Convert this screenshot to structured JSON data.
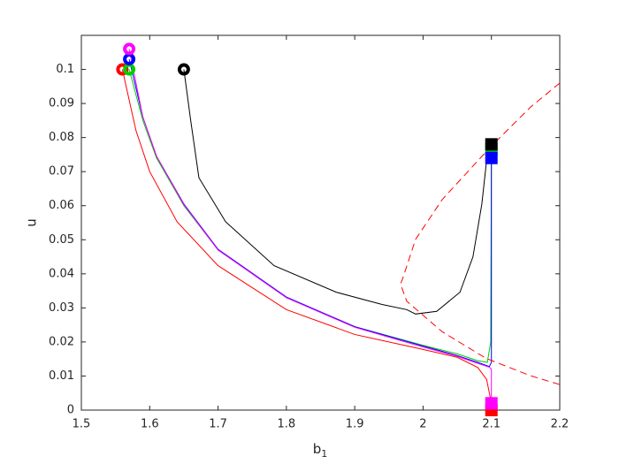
{
  "chart_data": {
    "type": "line",
    "x_label": [
      "b",
      "1"
    ],
    "y_label": "u",
    "xlim": [
      1.5,
      2.2
    ],
    "ylim": [
      0,
      0.11
    ],
    "xticks": [
      1.5,
      1.6,
      1.7,
      1.8,
      1.9,
      2,
      2.1,
      2.2
    ],
    "yticks": [
      0,
      0.01,
      0.02,
      0.03,
      0.04,
      0.05,
      0.06,
      0.07,
      0.08,
      0.09,
      0.1
    ],
    "series": [
      {
        "color": "#ff0000",
        "dash": false,
        "x": [
          1.56,
          1.58,
          1.6,
          1.64,
          1.7,
          1.8,
          1.9,
          2.0,
          2.05,
          2.08,
          2.093,
          2.098,
          2.1
        ],
        "values": [
          0.1,
          0.082,
          0.07,
          0.0553,
          0.0424,
          0.0295,
          0.0222,
          0.0178,
          0.0155,
          0.0125,
          0.009,
          0.004,
          0.0
        ],
        "start": [
          1.56,
          0.1
        ],
        "end": [
          2.1,
          0.0
        ]
      },
      {
        "color": "#00cc00",
        "dash": false,
        "x": [
          1.57,
          1.59,
          1.61,
          1.65,
          1.7,
          1.8,
          1.9,
          2.0,
          2.05,
          2.08,
          2.094,
          2.099,
          2.1
        ],
        "values": [
          0.1,
          0.085,
          0.074,
          0.06,
          0.047,
          0.033,
          0.0245,
          0.019,
          0.0165,
          0.0145,
          0.014,
          0.02,
          0.076
        ],
        "start": [
          1.57,
          0.1
        ],
        "end": [
          2.1,
          0.0765
        ]
      },
      {
        "color": "#0000ff",
        "dash": false,
        "x": [
          1.57,
          1.59,
          1.61,
          1.65,
          1.7,
          1.8,
          1.9,
          2.0,
          2.05,
          2.08,
          2.097,
          2.1,
          2.1
        ],
        "values": [
          0.103,
          0.086,
          0.0745,
          0.0605,
          0.0472,
          0.0332,
          0.0245,
          0.0188,
          0.016,
          0.014,
          0.0128,
          0.014,
          0.074
        ],
        "start": [
          1.57,
          0.103
        ],
        "end": [
          2.1,
          0.074
        ]
      },
      {
        "color": "#ff00ff",
        "dash": false,
        "x": [
          1.57,
          1.59,
          1.61,
          1.65,
          1.7,
          1.8,
          1.9,
          2.0,
          2.05,
          2.08,
          2.097,
          2.1,
          2.1
        ],
        "values": [
          0.106,
          0.086,
          0.0745,
          0.0603,
          0.047,
          0.033,
          0.0243,
          0.0185,
          0.0158,
          0.0137,
          0.0126,
          0.012,
          0.002
        ],
        "start": [
          1.57,
          0.106
        ],
        "end": [
          2.1,
          0.002
        ]
      },
      {
        "color": "#000000",
        "dash": false,
        "x": [
          1.65,
          1.66,
          1.672,
          1.711,
          1.782,
          1.873,
          1.94,
          1.976,
          1.989,
          2.02,
          2.054,
          2.073,
          2.086,
          2.095,
          2.1
        ],
        "values": [
          0.1,
          0.085,
          0.0682,
          0.0553,
          0.0424,
          0.0346,
          0.031,
          0.0295,
          0.0282,
          0.029,
          0.0346,
          0.045,
          0.0605,
          0.077,
          0.078
        ],
        "start": [
          1.65,
          0.1
        ],
        "end": [
          2.1,
          0.078
        ]
      },
      {
        "color": "#ff0000",
        "dash": true,
        "x": [
          2.2,
          2.157,
          2.099,
          2.028,
          1.989,
          1.97,
          1.967,
          1.976,
          2.028,
          2.092,
          2.157,
          2.2
        ],
        "values": [
          0.096,
          0.0889,
          0.0773,
          0.0618,
          0.0501,
          0.0385,
          0.037,
          0.032,
          0.023,
          0.0152,
          0.0101,
          0.0075
        ]
      }
    ]
  }
}
